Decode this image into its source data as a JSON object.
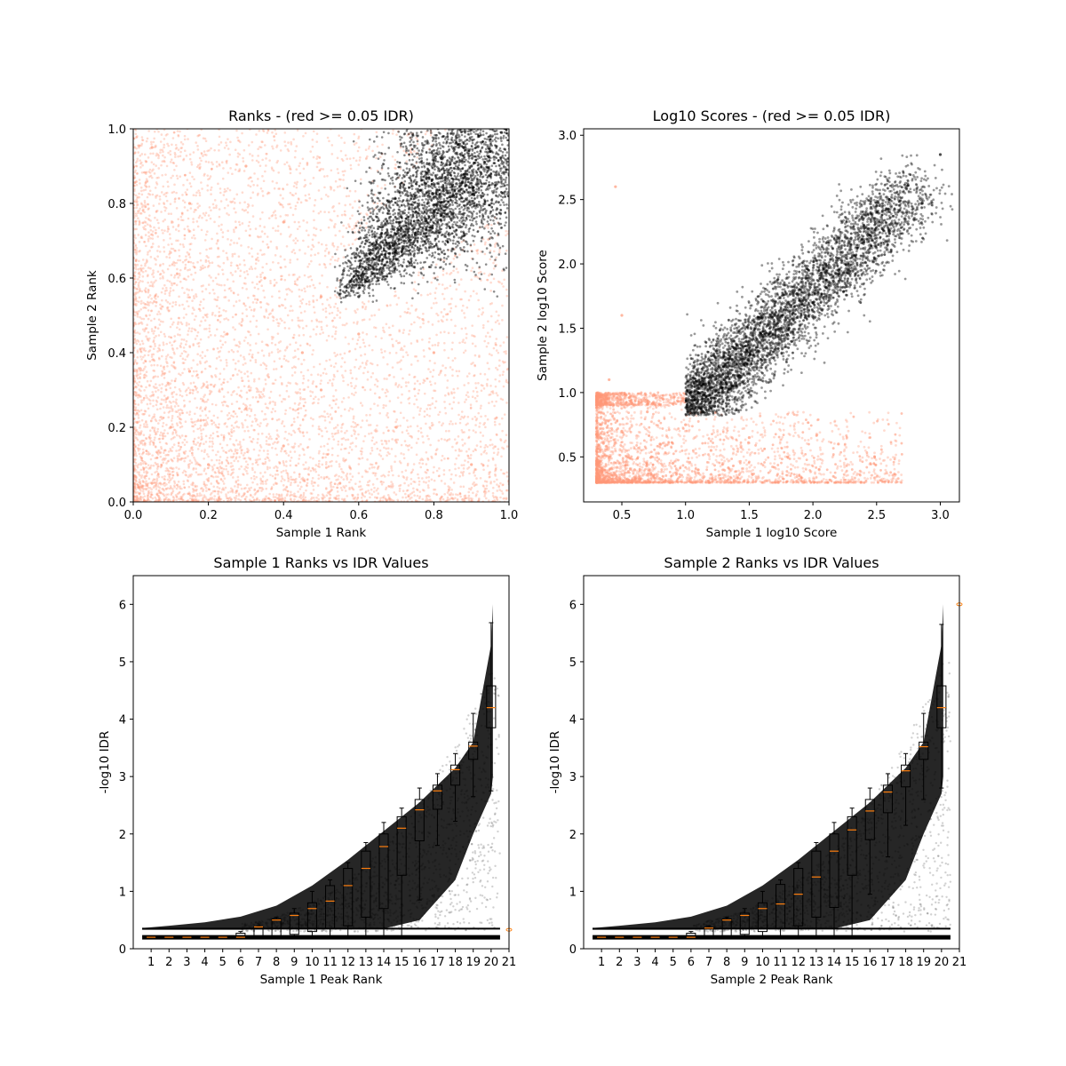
{
  "colors": {
    "pass": "#000000",
    "fail": "#ff9977",
    "median": "#ff7f0e",
    "axes": "#000000",
    "background": "#ffffff"
  },
  "chart_data": [
    {
      "type": "scatter",
      "title": "Ranks - (red >= 0.05 IDR)",
      "xlabel": "Sample 1 Rank",
      "ylabel": "Sample 2 Rank",
      "xlim": [
        0.0,
        1.0
      ],
      "ylim": [
        0.0,
        1.0
      ],
      "xticks": [
        "0.0",
        "0.2",
        "0.4",
        "0.6",
        "0.8",
        "1.0"
      ],
      "yticks": [
        "0.0",
        "0.2",
        "0.4",
        "0.6",
        "0.8",
        "1.0"
      ],
      "grid": false,
      "series": [
        {
          "color": "fail",
          "points": [
            [
              0.05,
              0.05
            ],
            [
              0.1,
              0.2
            ],
            [
              0.15,
              0.35
            ],
            [
              0.2,
              0.1
            ],
            [
              0.25,
              0.45
            ],
            [
              0.3,
              0.25
            ],
            [
              0.35,
              0.6
            ],
            [
              0.4,
              0.15
            ],
            [
              0.45,
              0.4
            ],
            [
              0.5,
              0.3
            ],
            [
              0.55,
              0.05
            ],
            [
              0.6,
              0.45
            ],
            [
              0.7,
              0.2
            ],
            [
              0.8,
              0.4
            ],
            [
              0.9,
              0.1
            ],
            [
              0.15,
              0.8
            ],
            [
              0.05,
              0.95
            ],
            [
              0.4,
              0.75
            ],
            [
              0.5,
              0.55
            ],
            [
              0.3,
              0.9
            ]
          ]
        },
        {
          "color": "pass",
          "points": [
            [
              0.56,
              0.62
            ],
            [
              0.6,
              0.55
            ],
            [
              0.62,
              0.7
            ],
            [
              0.65,
              0.6
            ],
            [
              0.68,
              0.78
            ],
            [
              0.7,
              0.65
            ],
            [
              0.72,
              0.85
            ],
            [
              0.75,
              0.72
            ],
            [
              0.78,
              0.88
            ],
            [
              0.8,
              0.78
            ],
            [
              0.82,
              0.92
            ],
            [
              0.85,
              0.85
            ],
            [
              0.88,
              0.95
            ],
            [
              0.9,
              0.9
            ],
            [
              0.92,
              0.98
            ],
            [
              0.95,
              0.94
            ],
            [
              0.98,
              0.99
            ],
            [
              0.99,
              1.0
            ]
          ]
        }
      ]
    },
    {
      "type": "scatter",
      "title": "Log10 Scores - (red >= 0.05 IDR)",
      "xlabel": "Sample 1 log10 Score",
      "ylabel": "Sample 2 log10 Score",
      "xlim": [
        0.2,
        3.15
      ],
      "ylim": [
        0.15,
        3.05
      ],
      "xticks": [
        0.5,
        1.0,
        1.5,
        2.0,
        2.5,
        3.0
      ],
      "yticks": [
        0.5,
        1.0,
        1.5,
        2.0,
        2.5,
        3.0
      ],
      "xtick_labels": [
        "0.5",
        "1.0",
        "1.5",
        "2.0",
        "2.5",
        "3.0"
      ],
      "ytick_labels": [
        "0.5",
        "1.0",
        "1.5",
        "2.0",
        "2.5",
        "3.0"
      ],
      "grid": false,
      "series": [
        {
          "color": "fail",
          "points": [
            [
              0.3,
              0.35
            ],
            [
              0.4,
              0.5
            ],
            [
              0.5,
              0.7
            ],
            [
              0.6,
              0.4
            ],
            [
              0.7,
              0.85
            ],
            [
              0.8,
              0.6
            ],
            [
              0.9,
              0.45
            ],
            [
              1.0,
              0.75
            ],
            [
              1.2,
              0.55
            ],
            [
              1.5,
              0.65
            ],
            [
              1.8,
              0.5
            ],
            [
              2.2,
              0.6
            ],
            [
              0.4,
              1.1
            ],
            [
              0.5,
              1.6
            ],
            [
              0.45,
              2.6
            ],
            [
              1.1,
              0.4
            ]
          ]
        },
        {
          "color": "pass",
          "points": [
            [
              1.05,
              0.9
            ],
            [
              1.1,
              1.0
            ],
            [
              1.2,
              0.88
            ],
            [
              1.3,
              1.2
            ],
            [
              1.4,
              1.05
            ],
            [
              1.5,
              1.4
            ],
            [
              1.6,
              1.25
            ],
            [
              1.7,
              1.6
            ],
            [
              1.8,
              1.45
            ],
            [
              1.9,
              1.8
            ],
            [
              2.0,
              1.7
            ],
            [
              2.1,
              2.0
            ],
            [
              2.2,
              1.95
            ],
            [
              2.3,
              2.2
            ],
            [
              2.4,
              2.3
            ],
            [
              2.5,
              2.45
            ],
            [
              2.6,
              2.5
            ],
            [
              3.0,
              2.85
            ]
          ]
        }
      ]
    },
    {
      "type": "box",
      "title": "Sample 1 Ranks vs IDR Values",
      "xlabel": "Sample 1 Peak Rank",
      "ylabel": "-log10 IDR",
      "xlim": [
        0,
        21
      ],
      "ylim": [
        0,
        6.5
      ],
      "xticks": [
        "1",
        "2",
        "3",
        "4",
        "5",
        "6",
        "7",
        "8",
        "9",
        "10",
        "11",
        "12",
        "13",
        "14",
        "15",
        "16",
        "17",
        "18",
        "19",
        "20",
        "21"
      ],
      "yticks": [
        "0",
        "1",
        "2",
        "3",
        "4",
        "5",
        "6"
      ],
      "grid": false,
      "boxes": [
        {
          "rank": 1,
          "q1": 0.2,
          "median": 0.2,
          "q3": 0.2,
          "whisker_low": 0.2,
          "whisker_high": 0.2
        },
        {
          "rank": 2,
          "q1": 0.2,
          "median": 0.2,
          "q3": 0.2,
          "whisker_low": 0.2,
          "whisker_high": 0.2
        },
        {
          "rank": 3,
          "q1": 0.2,
          "median": 0.2,
          "q3": 0.2,
          "whisker_low": 0.2,
          "whisker_high": 0.2
        },
        {
          "rank": 4,
          "q1": 0.2,
          "median": 0.2,
          "q3": 0.2,
          "whisker_low": 0.2,
          "whisker_high": 0.2
        },
        {
          "rank": 5,
          "q1": 0.2,
          "median": 0.2,
          "q3": 0.22,
          "whisker_low": 0.2,
          "whisker_high": 0.22
        },
        {
          "rank": 6,
          "q1": 0.2,
          "median": 0.2,
          "q3": 0.27,
          "whisker_low": 0.2,
          "whisker_high": 0.3
        },
        {
          "rank": 7,
          "q1": 0.2,
          "median": 0.38,
          "q3": 0.38,
          "whisker_low": 0.2,
          "whisker_high": 0.4
        },
        {
          "rank": 8,
          "q1": 0.22,
          "median": 0.5,
          "q3": 0.52,
          "whisker_low": 0.2,
          "whisker_high": 0.55
        },
        {
          "rank": 9,
          "q1": 0.25,
          "median": 0.58,
          "q3": 0.62,
          "whisker_low": 0.2,
          "whisker_high": 0.7
        },
        {
          "rank": 10,
          "q1": 0.3,
          "median": 0.7,
          "q3": 0.8,
          "whisker_low": 0.2,
          "whisker_high": 1.0
        },
        {
          "rank": 11,
          "q1": 0.35,
          "median": 0.83,
          "q3": 1.1,
          "whisker_low": 0.2,
          "whisker_high": 1.2
        },
        {
          "rank": 12,
          "q1": 0.4,
          "median": 1.1,
          "q3": 1.4,
          "whisker_low": 0.2,
          "whisker_high": 1.5
        },
        {
          "rank": 13,
          "q1": 0.55,
          "median": 1.4,
          "q3": 1.7,
          "whisker_low": 0.2,
          "whisker_high": 1.85
        },
        {
          "rank": 14,
          "q1": 0.7,
          "median": 1.78,
          "q3": 2.0,
          "whisker_low": 0.2,
          "whisker_high": 2.2
        },
        {
          "rank": 15,
          "q1": 1.28,
          "median": 2.1,
          "q3": 2.3,
          "whisker_low": 0.2,
          "whisker_high": 2.45
        },
        {
          "rank": 16,
          "q1": 1.88,
          "median": 2.42,
          "q3": 2.6,
          "whisker_low": 0.85,
          "whisker_high": 2.8
        },
        {
          "rank": 17,
          "q1": 2.43,
          "median": 2.75,
          "q3": 2.85,
          "whisker_low": 1.8,
          "whisker_high": 3.05
        },
        {
          "rank": 18,
          "q1": 2.85,
          "median": 3.12,
          "q3": 3.2,
          "whisker_low": 2.22,
          "whisker_high": 3.4
        },
        {
          "rank": 19,
          "q1": 3.3,
          "median": 3.53,
          "q3": 3.6,
          "whisker_low": 2.65,
          "whisker_high": 4.1
        },
        {
          "rank": 20,
          "q1": 3.85,
          "median": 4.2,
          "q3": 4.58,
          "whisker_low": 2.75,
          "whisker_high": 5.68
        }
      ],
      "fliers": [
        [
          21,
          0.33
        ]
      ],
      "bands": [
        {
          "from": 0.5,
          "to": 20.5,
          "y": 0.2,
          "lw": 5
        },
        {
          "from": 0.5,
          "to": 20.5,
          "y": 0.35,
          "lw": 2
        }
      ],
      "envelope": {
        "x": [
          0.5,
          2,
          4,
          6,
          8,
          10,
          12,
          14,
          16,
          18,
          19,
          20,
          20.1
        ],
        "upper": [
          0.36,
          0.4,
          0.46,
          0.56,
          0.75,
          1.1,
          1.55,
          2.05,
          2.55,
          3.15,
          3.6,
          5.3,
          6.0
        ],
        "lower": [
          0.33,
          0.33,
          0.33,
          0.33,
          0.34,
          0.35,
          0.35,
          0.35,
          0.5,
          1.2,
          2.0,
          2.7,
          3.0
        ]
      }
    },
    {
      "type": "box",
      "title": "Sample 2 Ranks vs IDR Values",
      "xlabel": "Sample 2 Peak Rank",
      "ylabel": "-log10 IDR",
      "xlim": [
        0,
        21
      ],
      "ylim": [
        0,
        6.5
      ],
      "xticks": [
        "1",
        "2",
        "3",
        "4",
        "5",
        "6",
        "7",
        "8",
        "9",
        "10",
        "11",
        "12",
        "13",
        "14",
        "15",
        "16",
        "17",
        "18",
        "19",
        "20",
        "21"
      ],
      "yticks": [
        "0",
        "1",
        "2",
        "3",
        "4",
        "5",
        "6"
      ],
      "grid": false,
      "boxes": [
        {
          "rank": 1,
          "q1": 0.2,
          "median": 0.2,
          "q3": 0.2,
          "whisker_low": 0.2,
          "whisker_high": 0.2
        },
        {
          "rank": 2,
          "q1": 0.2,
          "median": 0.2,
          "q3": 0.2,
          "whisker_low": 0.2,
          "whisker_high": 0.2
        },
        {
          "rank": 3,
          "q1": 0.2,
          "median": 0.2,
          "q3": 0.2,
          "whisker_low": 0.2,
          "whisker_high": 0.2
        },
        {
          "rank": 4,
          "q1": 0.2,
          "median": 0.2,
          "q3": 0.2,
          "whisker_low": 0.2,
          "whisker_high": 0.2
        },
        {
          "rank": 5,
          "q1": 0.2,
          "median": 0.2,
          "q3": 0.22,
          "whisker_low": 0.2,
          "whisker_high": 0.22
        },
        {
          "rank": 6,
          "q1": 0.2,
          "median": 0.2,
          "q3": 0.27,
          "whisker_low": 0.2,
          "whisker_high": 0.3
        },
        {
          "rank": 7,
          "q1": 0.2,
          "median": 0.36,
          "q3": 0.37,
          "whisker_low": 0.2,
          "whisker_high": 0.4
        },
        {
          "rank": 8,
          "q1": 0.22,
          "median": 0.5,
          "q3": 0.52,
          "whisker_low": 0.2,
          "whisker_high": 0.55
        },
        {
          "rank": 9,
          "q1": 0.25,
          "median": 0.58,
          "q3": 0.62,
          "whisker_low": 0.2,
          "whisker_high": 0.7
        },
        {
          "rank": 10,
          "q1": 0.3,
          "median": 0.7,
          "q3": 0.8,
          "whisker_low": 0.2,
          "whisker_high": 1.0
        },
        {
          "rank": 11,
          "q1": 0.35,
          "median": 0.78,
          "q3": 1.12,
          "whisker_low": 0.2,
          "whisker_high": 1.2
        },
        {
          "rank": 12,
          "q1": 0.4,
          "median": 0.95,
          "q3": 1.4,
          "whisker_low": 0.2,
          "whisker_high": 1.5
        },
        {
          "rank": 13,
          "q1": 0.55,
          "median": 1.25,
          "q3": 1.7,
          "whisker_low": 0.2,
          "whisker_high": 1.85
        },
        {
          "rank": 14,
          "q1": 0.72,
          "median": 1.7,
          "q3": 2.0,
          "whisker_low": 0.2,
          "whisker_high": 2.2
        },
        {
          "rank": 15,
          "q1": 1.28,
          "median": 2.07,
          "q3": 2.3,
          "whisker_low": 0.2,
          "whisker_high": 2.45
        },
        {
          "rank": 16,
          "q1": 1.9,
          "median": 2.4,
          "q3": 2.6,
          "whisker_low": 0.95,
          "whisker_high": 2.8
        },
        {
          "rank": 17,
          "q1": 2.37,
          "median": 2.73,
          "q3": 2.85,
          "whisker_low": 1.6,
          "whisker_high": 3.05
        },
        {
          "rank": 18,
          "q1": 2.82,
          "median": 3.1,
          "q3": 3.2,
          "whisker_low": 2.15,
          "whisker_high": 3.4
        },
        {
          "rank": 19,
          "q1": 3.3,
          "median": 3.52,
          "q3": 3.6,
          "whisker_low": 2.6,
          "whisker_high": 4.1
        },
        {
          "rank": 20,
          "q1": 3.85,
          "median": 4.2,
          "q3": 4.58,
          "whisker_low": 2.8,
          "whisker_high": 5.65
        }
      ],
      "fliers": [
        [
          21,
          6.0
        ]
      ],
      "bands": [
        {
          "from": 0.5,
          "to": 20.5,
          "y": 0.2,
          "lw": 5
        },
        {
          "from": 0.5,
          "to": 20.5,
          "y": 0.35,
          "lw": 2
        }
      ],
      "envelope": {
        "x": [
          0.5,
          2,
          4,
          6,
          8,
          10,
          12,
          14,
          16,
          18,
          19,
          20,
          20.1
        ],
        "upper": [
          0.36,
          0.4,
          0.46,
          0.56,
          0.75,
          1.1,
          1.55,
          2.05,
          2.55,
          3.15,
          3.6,
          5.3,
          6.0
        ],
        "lower": [
          0.33,
          0.33,
          0.33,
          0.33,
          0.34,
          0.35,
          0.35,
          0.35,
          0.5,
          1.2,
          2.0,
          2.7,
          3.0
        ]
      }
    }
  ]
}
